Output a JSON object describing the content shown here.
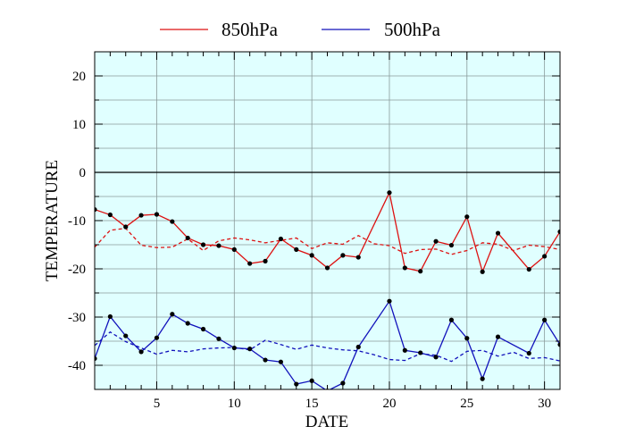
{
  "chart_data": {
    "type": "line",
    "xlabel": "DATE",
    "ylabel": "TEMPERATURE",
    "xlim": [
      1,
      31
    ],
    "ylim": [
      -45,
      25
    ],
    "xticks": [
      5,
      10,
      15,
      20,
      25,
      30
    ],
    "yticks": [
      -40,
      -30,
      -20,
      -10,
      0,
      10,
      20
    ],
    "grid": true,
    "zero_line": true,
    "background_color": "#e0ffff",
    "legend_position": "top-center",
    "x": [
      1,
      2,
      3,
      4,
      5,
      6,
      7,
      8,
      9,
      10,
      11,
      12,
      13,
      14,
      15,
      16,
      17,
      18,
      19,
      20,
      21,
      22,
      23,
      24,
      25,
      26,
      27,
      28,
      29,
      30,
      31
    ],
    "series": [
      {
        "name": "850hPa",
        "color": "#dd1111",
        "style": "solid",
        "markers": true,
        "values": [
          null,
          -8.8,
          -11.3,
          -8.9,
          -8.7,
          -10.2,
          -13.6,
          -15.0,
          -15.2,
          -16.0,
          -18.9,
          -18.4,
          -13.8,
          -16.0,
          -17.2,
          -19.8,
          -17.2,
          -17.6,
          null,
          -4.2,
          -19.8,
          -20.5,
          -14.3,
          -15.1,
          -9.2,
          -20.6,
          -12.6,
          null,
          -20.1,
          -17.4,
          -12.3
        ],
        "start_value": -7.7
      },
      {
        "name": "850hPa normal",
        "color": "#dd1111",
        "style": "dashed",
        "markers": false,
        "values": [
          -15.5,
          -12.0,
          -11.6,
          -15.1,
          -15.6,
          -15.5,
          -13.8,
          -16.2,
          -14.2,
          -13.6,
          -14.0,
          -14.6,
          -14.1,
          -13.6,
          -15.8,
          -14.6,
          -14.9,
          -13.1,
          -14.8,
          -15.2,
          -16.8,
          -16.0,
          -15.9,
          -17.0,
          -16.2,
          -14.6,
          -14.9,
          -16.2,
          -15.1,
          -15.4,
          -16.0
        ]
      },
      {
        "name": "500hPa",
        "color": "#1111bb",
        "style": "solid",
        "markers": true,
        "values": [
          -38.6,
          -29.9,
          -33.9,
          -37.2,
          -34.3,
          -29.4,
          -31.3,
          -32.5,
          -34.5,
          -36.4,
          -36.6,
          -38.9,
          -39.3,
          -43.9,
          -43.2,
          -45.3,
          -43.7,
          -36.2,
          null,
          -26.7,
          -36.9,
          -37.4,
          -38.3,
          -30.6,
          -34.4,
          -42.8,
          -34.1,
          null,
          -37.5,
          -30.6,
          -35.7
        ]
      },
      {
        "name": "500hPa normal",
        "color": "#1111bb",
        "style": "dashed",
        "markers": false,
        "values": [
          -35.9,
          -33.1,
          -35.1,
          -36.4,
          -37.7,
          -36.9,
          -37.2,
          -36.6,
          -36.4,
          -36.3,
          -36.8,
          -34.8,
          -35.7,
          -36.7,
          -35.8,
          -36.4,
          -36.8,
          -37.0,
          -37.8,
          -38.8,
          -39.0,
          -37.6,
          -37.9,
          -39.2,
          -37.1,
          -36.9,
          -38.1,
          -37.3,
          -38.6,
          -38.4,
          -39.1
        ]
      }
    ],
    "legend": [
      {
        "label": "850hPa",
        "color": "#dd1111"
      },
      {
        "label": "500hPa",
        "color": "#1111bb"
      }
    ]
  }
}
